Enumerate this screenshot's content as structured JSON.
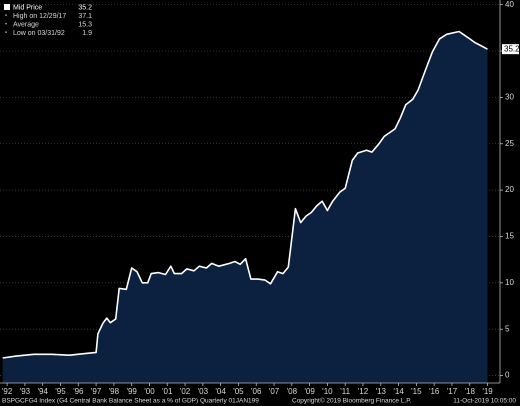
{
  "chart_data": {
    "type": "area",
    "series": [
      {
        "name": "Mid Price",
        "color": "#ffffff",
        "fill": "#0c2140",
        "x": [
          1992.25,
          1993.0,
          1994.0,
          1995.0,
          1996.0,
          1997.0,
          1997.5,
          1997.6,
          1997.9,
          1998.1,
          1998.3,
          1998.6,
          1998.8,
          1999.2,
          1999.5,
          1999.8,
          2000.1,
          2000.4,
          2000.6,
          2001.0,
          2001.4,
          2001.7,
          2001.9,
          2002.3,
          2002.6,
          2003.0,
          2003.3,
          2003.7,
          2004.0,
          2004.4,
          2005.0,
          2005.3,
          2005.6,
          2005.9,
          2006.2,
          2006.6,
          2007.0,
          2007.3,
          2007.7,
          2008.0,
          2008.3,
          2008.7,
          2009.0,
          2009.3,
          2009.6,
          2009.9,
          2010.2,
          2010.5,
          2010.8,
          2011.2,
          2011.5,
          2011.9,
          2012.2,
          2012.7,
          2013.0,
          2013.4,
          2013.7,
          2014.0,
          2014.3,
          2014.6,
          2014.9,
          2015.3,
          2015.6,
          2016.0,
          2016.4,
          2016.8,
          2017.2,
          2017.9,
          2018.2,
          2018.5,
          2018.8,
          2019.1,
          2019.5
        ],
        "values": [
          1.9,
          2.1,
          2.3,
          2.3,
          2.2,
          2.4,
          2.5,
          4.5,
          5.7,
          6.2,
          5.7,
          6.1,
          9.4,
          9.3,
          11.6,
          11.2,
          10.0,
          10.0,
          11.0,
          11.1,
          10.9,
          11.8,
          11.0,
          11.0,
          11.5,
          11.3,
          11.8,
          11.6,
          12.1,
          11.8,
          12.1,
          12.3,
          12.0,
          12.6,
          10.4,
          10.4,
          10.3,
          9.9,
          11.2,
          11.0,
          11.7,
          18.0,
          16.5,
          17.2,
          17.6,
          18.3,
          18.8,
          17.8,
          18.8,
          19.8,
          20.2,
          23.2,
          24.0,
          24.3,
          24.1,
          25.0,
          25.8,
          26.2,
          26.6,
          27.8,
          29.2,
          29.8,
          30.8,
          32.9,
          34.9,
          36.3,
          36.8,
          37.1,
          36.7,
          36.3,
          35.9,
          35.6,
          35.2
        ]
      }
    ],
    "stats": [
      {
        "label": "High on 12/29/17",
        "value": 37.1
      },
      {
        "label": "Average",
        "value": 15.3
      },
      {
        "label": "Low on 03/31/92",
        "value": 1.9
      }
    ],
    "xlim": [
      1992.1,
      2020.2
    ],
    "ylim": [
      -0.8,
      40.5
    ],
    "yticks": [
      0,
      5,
      10,
      15,
      20,
      25,
      30,
      35,
      40
    ],
    "xticks": [
      {
        "value": 1992.5,
        "label": "'92"
      },
      {
        "value": 1993.5,
        "label": "'93"
      },
      {
        "value": 1994.5,
        "label": "'94"
      },
      {
        "value": 1995.5,
        "label": "'95"
      },
      {
        "value": 1996.5,
        "label": "'96"
      },
      {
        "value": 1997.5,
        "label": "'97"
      },
      {
        "value": 1998.5,
        "label": "'98"
      },
      {
        "value": 1999.5,
        "label": "'99"
      },
      {
        "value": 2000.5,
        "label": "'00"
      },
      {
        "value": 2001.5,
        "label": "'01"
      },
      {
        "value": 2002.5,
        "label": "'02"
      },
      {
        "value": 2003.5,
        "label": "'03"
      },
      {
        "value": 2004.5,
        "label": "'04"
      },
      {
        "value": 2005.5,
        "label": "'05"
      },
      {
        "value": 2006.5,
        "label": "'06"
      },
      {
        "value": 2007.5,
        "label": "'07"
      },
      {
        "value": 2008.5,
        "label": "'08"
      },
      {
        "value": 2009.5,
        "label": "'09"
      },
      {
        "value": 2010.5,
        "label": "'10"
      },
      {
        "value": 2011.5,
        "label": "'11"
      },
      {
        "value": 2012.5,
        "label": "'12"
      },
      {
        "value": 2013.5,
        "label": "'13"
      },
      {
        "value": 2014.5,
        "label": "'14"
      },
      {
        "value": 2015.5,
        "label": "'15"
      },
      {
        "value": 2016.5,
        "label": "'16"
      },
      {
        "value": 2017.5,
        "label": "'17"
      },
      {
        "value": 2018.5,
        "label": "'18"
      },
      {
        "value": 2019.5,
        "label": "'19"
      }
    ],
    "grid": true,
    "footer": {
      "left": "BSPGCFG4 Index (G4 Central Bank Balance Sheet as a % of GDP)  Quarterly 01JAN199",
      "copyright": "Copyright© 2019 Bloomberg Finance L.P.",
      "timestamp": "11-Oct-2019 10:05:00"
    }
  }
}
